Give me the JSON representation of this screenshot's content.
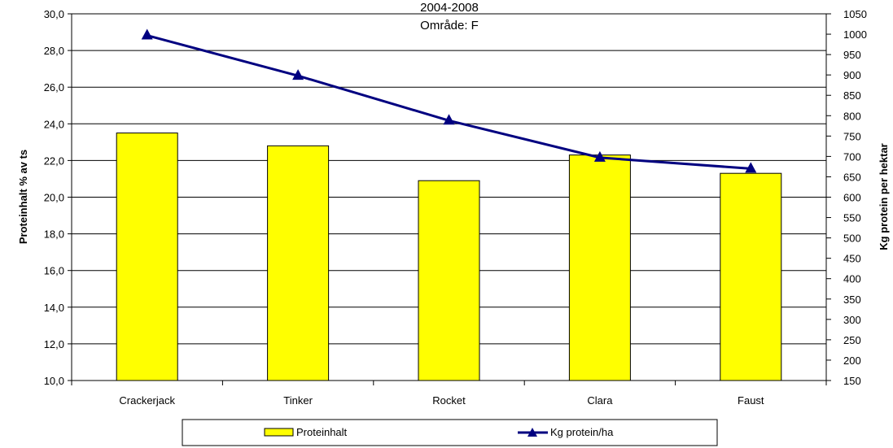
{
  "chart_data": {
    "type": "bar",
    "title_lines": [
      "2004-2008",
      "Område: F"
    ],
    "categories": [
      "Crackerjack",
      "Tinker",
      "Rocket",
      "Clara",
      "Faust"
    ],
    "series": [
      {
        "name": "Proteinhalt",
        "type": "bar",
        "axis": "left",
        "color": "#ffff00",
        "values": [
          23.5,
          22.8,
          20.9,
          22.3,
          21.3
        ]
      },
      {
        "name": "Kg protein/ha",
        "type": "line",
        "axis": "right",
        "color": "#000080",
        "marker": "triangle",
        "values": [
          997,
          898,
          788,
          697,
          670
        ]
      }
    ],
    "ylabel": "Proteinhalt % av ts",
    "y2label": "Kg protein per hektar",
    "ylim": [
      10,
      30
    ],
    "y2lim": [
      150,
      1050
    ],
    "yticks": [
      "10,0",
      "12,0",
      "14,0",
      "16,0",
      "18,0",
      "20,0",
      "22,0",
      "24,0",
      "26,0",
      "28,0",
      "30,0"
    ],
    "y2ticks": [
      "150",
      "200",
      "250",
      "300",
      "350",
      "400",
      "450",
      "500",
      "550",
      "600",
      "650",
      "700",
      "750",
      "800",
      "850",
      "900",
      "950",
      "1000",
      "1050"
    ],
    "grid": true,
    "legend_position": "bottom"
  }
}
